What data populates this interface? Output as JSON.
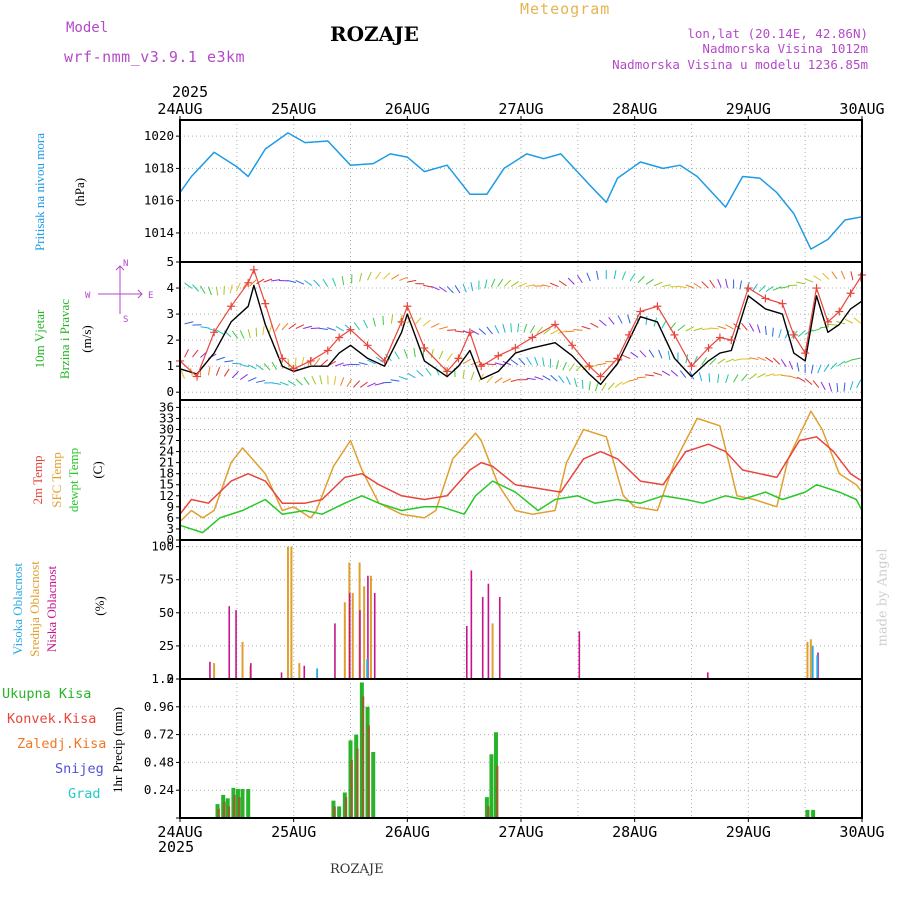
{
  "header": {
    "model_label": "Model",
    "model_name": "wrf-nmm_v3.9.1 e3km",
    "station": "ROZAJE",
    "product": "Meteogram",
    "lonlat": "lon,lat (20.14E, 42.86N)",
    "elevation": "Nadmorska Visina 1012m",
    "model_elevation": "Nadmorska Visina u modelu 1236.85m",
    "year_top": "2025",
    "year_bottom": "2025",
    "footer_station": "ROZAJE",
    "credit": "made by Angel"
  },
  "colors": {
    "pressure": "#1e9be6",
    "temp2m": "#e8463c",
    "sfc": "#e0a030",
    "dewpt": "#28c828",
    "high": "#2aa8e6",
    "mid": "#e0a030",
    "low": "#c8148c",
    "total": "#28b428",
    "convective": "#e8463c",
    "frozen": "#f07828",
    "snow": "#5050dc",
    "hail": "#28c8c8",
    "model_label": "#b44ac8",
    "product": "#e6b450"
  },
  "panel_labels": {
    "pressure_name": "Pritisak na nivou mora",
    "pressure_unit": "(hPa)",
    "wind_name_1": "10m Vjetar",
    "wind_name_2": "Brzina i Pravac",
    "wind_unit": "(m/s)",
    "compass_n": "N",
    "compass_w": "W",
    "compass_e": "E",
    "compass_s": "S",
    "temp_name_1": "2m Temp",
    "temp_name_2": "SFC Temp",
    "temp_name_3": "dewpt Temp",
    "temp_unit": "(C)",
    "cloud_high": "Visoka Oblacnost",
    "cloud_mid": "Srednja Oblacnost",
    "cloud_low": "Niska Oblacnost",
    "cloud_unit": "(%)",
    "precip_total": "Ukupna Kisa",
    "precip_conv": "Konvek.Kisa",
    "precip_frozen": "Zaledj.Kisa",
    "precip_snow": "Snijeg",
    "precip_hail": "Grad",
    "precip_unit": "1hr Precip (mm)"
  },
  "chart_data": {
    "type": "line",
    "title": "ROZAJE Meteogram",
    "x_axis": {
      "range_days": [
        24,
        30
      ],
      "tick_labels": [
        "24AUG",
        "25AUG",
        "26AUG",
        "27AUG",
        "28AUG",
        "29AUG",
        "30AUG"
      ]
    },
    "pressure": {
      "ylabel": "Pritisak na nivou mora (hPa)",
      "ylim": [
        1012.2,
        1021.0
      ],
      "yticks": [
        1014,
        1016,
        1018,
        1020
      ],
      "x": [
        24.0,
        24.1,
        24.3,
        24.5,
        24.6,
        24.75,
        24.95,
        25.1,
        25.3,
        25.5,
        25.7,
        25.85,
        26.0,
        26.15,
        26.35,
        26.55,
        26.7,
        26.85,
        27.05,
        27.2,
        27.35,
        27.6,
        27.75,
        27.85,
        28.05,
        28.25,
        28.4,
        28.55,
        28.8,
        28.95,
        29.1,
        29.25,
        29.4,
        29.55,
        29.7,
        29.85,
        30.0
      ],
      "values": [
        1016.5,
        1017.5,
        1019.0,
        1018.1,
        1017.5,
        1019.2,
        1020.2,
        1019.6,
        1019.7,
        1018.2,
        1018.3,
        1018.9,
        1018.7,
        1017.8,
        1018.2,
        1016.4,
        1016.4,
        1018.0,
        1018.9,
        1018.6,
        1018.9,
        1017.0,
        1015.9,
        1017.4,
        1018.4,
        1018.0,
        1018.2,
        1017.5,
        1015.6,
        1017.5,
        1017.4,
        1016.5,
        1015.2,
        1013.0,
        1013.6,
        1014.8,
        1015.0
      ]
    },
    "wind": {
      "ylabel": "10m Vjetar Brzina i Pravac (m/s)",
      "ylim": [
        -0.3,
        5.0
      ],
      "yticks": [
        0,
        1,
        2,
        3,
        4,
        5
      ],
      "direction_rows": [
        0.5,
        1.2,
        2.5,
        4.2
      ],
      "x": [
        24.0,
        24.15,
        24.3,
        24.45,
        24.6,
        24.65,
        24.75,
        24.9,
        25.0,
        25.15,
        25.3,
        25.4,
        25.5,
        25.65,
        25.8,
        25.95,
        26.0,
        26.15,
        26.35,
        26.45,
        26.55,
        26.65,
        26.8,
        26.95,
        27.1,
        27.3,
        27.45,
        27.6,
        27.7,
        27.85,
        27.95,
        28.05,
        28.2,
        28.35,
        28.5,
        28.65,
        28.75,
        28.85,
        29.0,
        29.15,
        29.3,
        29.4,
        29.5,
        29.6,
        29.7,
        29.8,
        29.9,
        30.0
      ],
      "speed": [
        0.9,
        0.7,
        1.5,
        2.7,
        3.3,
        4.1,
        2.6,
        1.0,
        0.8,
        1.0,
        1.0,
        1.5,
        1.8,
        1.3,
        1.0,
        2.3,
        3.0,
        1.2,
        0.6,
        1.0,
        1.6,
        0.5,
        0.8,
        1.5,
        1.7,
        1.9,
        1.4,
        0.7,
        0.3,
        1.1,
        2.0,
        2.9,
        2.7,
        1.3,
        0.6,
        1.2,
        1.5,
        1.6,
        3.7,
        3.2,
        3.0,
        1.5,
        1.2,
        3.7,
        2.3,
        2.6,
        3.2,
        3.5
      ],
      "gust": [
        1.2,
        0.6,
        2.3,
        3.3,
        4.2,
        4.7,
        3.4,
        1.3,
        0.9,
        1.2,
        1.6,
        2.1,
        2.4,
        1.8,
        1.2,
        2.7,
        3.3,
        1.7,
        0.8,
        1.3,
        2.3,
        1.0,
        1.4,
        1.7,
        2.1,
        2.6,
        1.8,
        1.0,
        0.6,
        1.3,
        2.2,
        3.1,
        3.3,
        2.2,
        1.0,
        1.7,
        2.1,
        2.0,
        4.0,
        3.6,
        3.4,
        2.2,
        1.5,
        4.0,
        2.7,
        3.1,
        3.8,
        4.5
      ]
    },
    "temperature": {
      "ylabel": "Temp (C)",
      "ylim": [
        0,
        38
      ],
      "yticks": [
        0,
        3,
        6,
        9,
        12,
        15,
        18,
        21,
        24,
        27,
        30,
        33,
        36
      ],
      "t2m": {
        "x": [
          24.0,
          24.1,
          24.25,
          24.45,
          24.6,
          24.75,
          24.9,
          25.1,
          25.25,
          25.45,
          25.6,
          25.75,
          25.95,
          26.15,
          26.35,
          26.55,
          26.65,
          26.75,
          26.95,
          27.15,
          27.35,
          27.55,
          27.7,
          27.85,
          28.05,
          28.25,
          28.45,
          28.65,
          28.8,
          28.95,
          29.1,
          29.25,
          29.45,
          29.6,
          29.75,
          29.9,
          30.0
        ],
        "values": [
          7,
          11,
          10,
          16,
          18,
          16,
          10,
          10,
          11,
          17,
          18,
          15,
          12,
          11,
          12,
          19,
          21,
          20,
          15,
          14,
          13,
          22,
          24,
          22,
          16,
          15,
          24,
          26,
          24,
          19,
          18,
          17,
          27,
          28,
          24,
          18,
          16
        ]
      },
      "sfc": {
        "x": [
          24.0,
          24.1,
          24.2,
          24.3,
          24.45,
          24.55,
          24.75,
          24.9,
          25.0,
          25.15,
          25.2,
          25.35,
          25.5,
          25.6,
          25.75,
          25.95,
          26.15,
          26.25,
          26.4,
          26.6,
          26.65,
          26.8,
          26.95,
          27.1,
          27.3,
          27.4,
          27.55,
          27.75,
          27.9,
          28.0,
          28.2,
          28.35,
          28.55,
          28.75,
          28.9,
          29.05,
          29.25,
          29.35,
          29.55,
          29.65,
          29.8,
          29.95,
          30.0
        ],
        "values": [
          5,
          8,
          6,
          8,
          21,
          25,
          18,
          8,
          9,
          6,
          8,
          20,
          27,
          19,
          10,
          7,
          6,
          8,
          22,
          29,
          27,
          15,
          8,
          7,
          8,
          21,
          30,
          28,
          12,
          9,
          8,
          21,
          33,
          31,
          12,
          11,
          9,
          22,
          35,
          30,
          18,
          15,
          13
        ]
      },
      "dewpt": {
        "x": [
          24.0,
          24.2,
          24.35,
          24.55,
          24.75,
          24.9,
          25.1,
          25.25,
          25.45,
          25.6,
          25.75,
          25.95,
          26.15,
          26.3,
          26.5,
          26.6,
          26.75,
          26.95,
          27.15,
          27.3,
          27.5,
          27.65,
          27.85,
          28.05,
          28.25,
          28.45,
          28.6,
          28.8,
          28.95,
          29.15,
          29.3,
          29.5,
          29.6,
          29.8,
          29.95,
          30.0
        ],
        "values": [
          4,
          2,
          6,
          8,
          11,
          7,
          8,
          7,
          10,
          12,
          10,
          8,
          9,
          9,
          7,
          12,
          16,
          13,
          8,
          11,
          12,
          10,
          11,
          10,
          12,
          11,
          10,
          12,
          11,
          13,
          11,
          13,
          15,
          13,
          11,
          8
        ]
      }
    },
    "clouds": {
      "ylabel": "Oblacnost (%)",
      "ylim": [
        0,
        105
      ],
      "yticks": [
        0,
        25,
        50,
        75,
        100
      ],
      "high": {
        "x": [
          25.18,
          25.62,
          29.54,
          29.58
        ],
        "values": [
          8,
          15,
          25,
          18
        ]
      },
      "mid": {
        "x": [
          24.3,
          24.55,
          24.62,
          24.95,
          24.98,
          25.05,
          25.45,
          25.49,
          25.52,
          25.58,
          25.62,
          25.68,
          26.75,
          29.52,
          29.55
        ],
        "values": [
          12,
          28,
          10,
          100,
          100,
          12,
          58,
          88,
          65,
          88,
          70,
          78,
          42,
          28,
          30
        ]
      },
      "low": {
        "x": [
          24.25,
          24.42,
          24.48,
          24.61,
          24.88,
          25.08,
          25.35,
          25.48,
          25.57,
          25.64,
          25.7,
          26.51,
          26.55,
          26.65,
          26.7,
          26.8,
          27.5,
          28.63,
          29.6
        ],
        "values": [
          13,
          55,
          52,
          12,
          5,
          10,
          42,
          65,
          52,
          78,
          65,
          40,
          82,
          62,
          72,
          62,
          36,
          5,
          20
        ]
      }
    },
    "precip": {
      "ylabel": "1hr Precip (mm)",
      "ylim": [
        0,
        1.2
      ],
      "yticks": [
        0,
        0.24,
        0.48,
        0.72,
        0.96,
        1.2
      ],
      "total": {
        "x": [
          24.33,
          24.38,
          24.42,
          24.47,
          24.51,
          24.55,
          24.6,
          25.35,
          25.4,
          25.45,
          25.5,
          25.55,
          25.6,
          25.65,
          25.7,
          26.7,
          26.74,
          26.78,
          29.52,
          29.57
        ],
        "values": [
          0.12,
          0.2,
          0.17,
          0.26,
          0.25,
          0.25,
          0.25,
          0.15,
          0.1,
          0.22,
          0.67,
          0.72,
          1.17,
          0.96,
          0.57,
          0.18,
          0.55,
          0.74,
          0.07,
          0.07
        ]
      },
      "convective": {
        "x": [
          24.34,
          24.39,
          24.43,
          24.48,
          24.52,
          25.36,
          25.46,
          25.51,
          25.56,
          25.61,
          25.66,
          26.71,
          26.79
        ],
        "values": [
          0.08,
          0.14,
          0.1,
          0.2,
          0.18,
          0.1,
          0.18,
          0.5,
          0.6,
          1.05,
          0.8,
          0.1,
          0.45
        ]
      }
    }
  }
}
